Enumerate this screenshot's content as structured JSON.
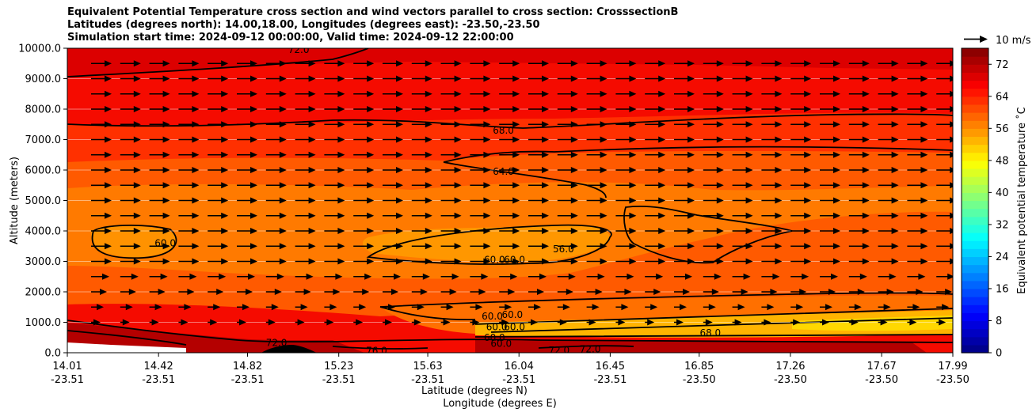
{
  "chart_data": {
    "type": "cross-section-contour",
    "title_lines": [
      "Equivalent Potential Temperature cross section and wind vectors parallel to cross section: CrosssectionB",
      "Latitudes (degrees north): 14.00,18.00, Longitudes (degrees east): -23.50,-23.50",
      "Simulation start time: 2024-09-12 00:00:00, Valid time: 2024-09-12 22:00:00"
    ],
    "ylabel": "Altitude (meters)",
    "xlabel_lat": "Latitude (degrees N)",
    "xlabel_lon": "Longitude (degrees E)",
    "ylim": [
      0,
      10000
    ],
    "yticks": [
      "0.0",
      "1000.0",
      "2000.0",
      "3000.0",
      "4000.0",
      "5000.0",
      "6000.0",
      "7000.0",
      "8000.0",
      "9000.0",
      "10000.0"
    ],
    "xticks": [
      {
        "lat": "14.01",
        "lon": "-23.51"
      },
      {
        "lat": "14.42",
        "lon": "-23.51"
      },
      {
        "lat": "14.82",
        "lon": "-23.51"
      },
      {
        "lat": "15.23",
        "lon": "-23.51"
      },
      {
        "lat": "15.63",
        "lon": "-23.51"
      },
      {
        "lat": "16.04",
        "lon": "-23.51"
      },
      {
        "lat": "16.45",
        "lon": "-23.51"
      },
      {
        "lat": "16.85",
        "lon": "-23.50"
      },
      {
        "lat": "17.26",
        "lon": "-23.50"
      },
      {
        "lat": "17.67",
        "lon": "-23.50"
      },
      {
        "lat": "17.99",
        "lon": "-23.50"
      }
    ],
    "lat_range": [
      14.01,
      17.99
    ],
    "colorbar": {
      "label": "Equivalent potential temperature ˚C",
      "range": [
        0,
        76
      ],
      "step": 2,
      "ticks": [
        "0",
        "8",
        "16",
        "24",
        "32",
        "40",
        "48",
        "56",
        "64",
        "72"
      ]
    },
    "wind_key": "10 m/s",
    "contour_labels": [
      {
        "text": "72.0",
        "lat": 14.95,
        "alt": 330
      },
      {
        "text": "72.0",
        "lat": 15.05,
        "alt": 9950
      },
      {
        "text": "76.0",
        "lat": 15.4,
        "alt": 60
      },
      {
        "text": "68.0",
        "lat": 15.97,
        "alt": 7300
      },
      {
        "text": "64.0",
        "lat": 15.97,
        "alt": 5950
      },
      {
        "text": "60.0",
        "lat": 14.45,
        "alt": 3600
      },
      {
        "text": "56.0",
        "lat": 16.24,
        "alt": 3400
      },
      {
        "text": "60.0",
        "lat": 15.93,
        "alt": 3050
      },
      {
        "text": "60.0",
        "lat": 16.02,
        "alt": 3050
      },
      {
        "text": "60.0",
        "lat": 15.92,
        "alt": 1200
      },
      {
        "text": "60.0",
        "lat": 16.01,
        "alt": 1250
      },
      {
        "text": "60.0",
        "lat": 15.94,
        "alt": 850
      },
      {
        "text": "60.0",
        "lat": 16.02,
        "alt": 850
      },
      {
        "text": "60.0",
        "lat": 15.93,
        "alt": 500
      },
      {
        "text": "60.0",
        "lat": 15.96,
        "alt": 300
      },
      {
        "text": "72.0",
        "lat": 16.22,
        "alt": 80
      },
      {
        "text": "72.0",
        "lat": 16.36,
        "alt": 120
      },
      {
        "text": "68.0",
        "lat": 16.9,
        "alt": 650
      }
    ]
  }
}
